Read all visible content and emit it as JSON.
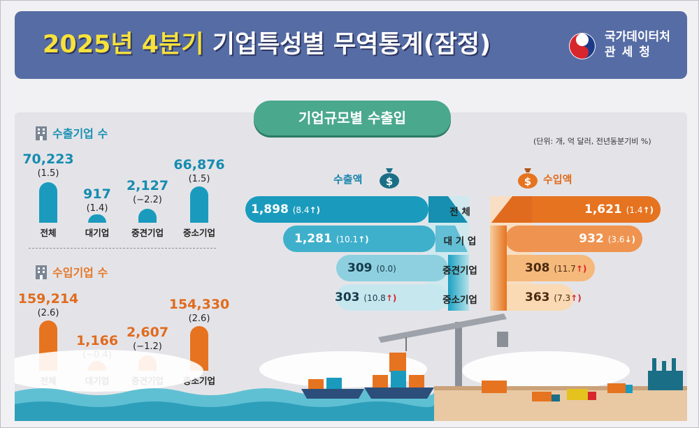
{
  "header": {
    "title_highlight": "2025년 4분기",
    "title_rest": " 기업특성별 무역통계(잠정)",
    "agency_line1": "국가데이터처",
    "agency_line2": "관세청"
  },
  "section_title": "기업규모별 수출입",
  "unit_note": "(단위: 개, 억 달러, 전년동분기비 %)",
  "exporters": {
    "heading": "수출기업 수",
    "items": [
      {
        "category": "전체",
        "value": "70,223",
        "rate": "(1.5)"
      },
      {
        "category": "대기업",
        "value": "917",
        "rate": "(1.4)"
      },
      {
        "category": "중견기업",
        "value": "2,127",
        "rate": "(−2.2)"
      },
      {
        "category": "중소기업",
        "value": "66,876",
        "rate": "(1.5)"
      }
    ]
  },
  "importers": {
    "heading": "수입기업 수",
    "items": [
      {
        "category": "전체",
        "value": "159,214",
        "rate": "(2.6)"
      },
      {
        "category": "대기업",
        "value": "1,166",
        "rate": "(−0.4)"
      },
      {
        "category": "중견기업",
        "value": "2,607",
        "rate": "(−1.2)"
      },
      {
        "category": "중소기업",
        "value": "154,330",
        "rate": "(2.6)"
      }
    ]
  },
  "trade": {
    "export_label": "수출액",
    "import_label": "수입액",
    "rows": [
      {
        "label": "전 체",
        "export": "1,898",
        "export_rate": "(8.4",
        "export_dir": "up",
        "import": "1,621",
        "import_rate": "(1.4",
        "import_dir": "up"
      },
      {
        "label": "대 기 업",
        "export": "1,281",
        "export_rate": "(10.1",
        "export_dir": "up",
        "import": "932",
        "import_rate": "(3.6",
        "import_dir": "down"
      },
      {
        "label": "중견기업",
        "export": "309",
        "export_rate": "(0.0)",
        "export_dir": "none",
        "import": "308",
        "import_rate": "(11.7",
        "import_dir": "up"
      },
      {
        "label": "중소기업",
        "export": "303",
        "export_rate": "(10.8",
        "export_dir": "up",
        "import": "363",
        "import_rate": "(7.3",
        "import_dir": "up"
      }
    ]
  },
  "colors": {
    "header_bg": "#566ca4",
    "title_highlight": "#f6e23b",
    "export_accent": "#1a9bbd",
    "import_accent": "#e6731f",
    "section_green": "#4aa88d",
    "up_arrow": "#d8262d",
    "down_arrow": "#3466c9"
  }
}
